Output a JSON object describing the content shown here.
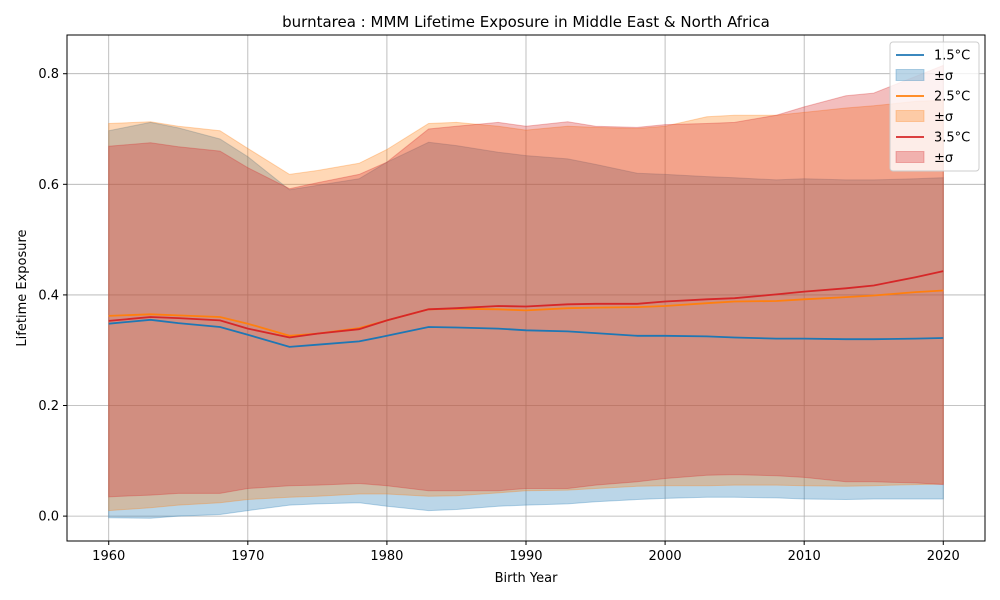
{
  "chart_data": {
    "type": "area",
    "title": "burntarea : MMM Lifetime Exposure in Middle East & North Africa",
    "xlabel": "Birth Year",
    "ylabel": "Lifetime Exposure",
    "xlim": [
      1957,
      2023
    ],
    "ylim": [
      -0.045,
      0.87
    ],
    "x_ticks": [
      "1960",
      "1970",
      "1980",
      "1990",
      "2000",
      "2010",
      "2020"
    ],
    "y_ticks": [
      "0.0",
      "0.2",
      "0.4",
      "0.6",
      "0.8"
    ],
    "grid": true,
    "legend_position": "top-right",
    "x": [
      1960,
      1963,
      1965,
      1968,
      1970,
      1973,
      1975,
      1978,
      1980,
      1983,
      1985,
      1988,
      1990,
      1993,
      1995,
      1998,
      2000,
      2003,
      2005,
      2008,
      2010,
      2013,
      2015,
      2018,
      2020
    ],
    "series": [
      {
        "name": "1.5°C",
        "band_label": "±σ",
        "color": "#1f77b4",
        "fill": "#9ec5e4",
        "mean": [
          0.348,
          0.355,
          0.349,
          0.342,
          0.328,
          0.306,
          0.31,
          0.316,
          0.326,
          0.342,
          0.341,
          0.339,
          0.336,
          0.334,
          0.331,
          0.326,
          0.326,
          0.325,
          0.323,
          0.321,
          0.321,
          0.32,
          0.32,
          0.321,
          0.322
        ],
        "upper": [
          0.697,
          0.712,
          0.702,
          0.682,
          0.65,
          0.59,
          0.598,
          0.61,
          0.64,
          0.676,
          0.67,
          0.658,
          0.652,
          0.646,
          0.636,
          0.62,
          0.618,
          0.614,
          0.612,
          0.608,
          0.61,
          0.608,
          0.608,
          0.61,
          0.612
        ],
        "lower": [
          -0.003,
          -0.004,
          0.0,
          0.003,
          0.01,
          0.02,
          0.022,
          0.024,
          0.018,
          0.01,
          0.012,
          0.018,
          0.02,
          0.022,
          0.026,
          0.03,
          0.032,
          0.034,
          0.034,
          0.033,
          0.031,
          0.03,
          0.031,
          0.031,
          0.031
        ]
      },
      {
        "name": "2.5°C",
        "band_label": "±σ",
        "color": "#ff7f0e",
        "fill": "#ffc896",
        "mean": [
          0.362,
          0.365,
          0.363,
          0.36,
          0.348,
          0.326,
          0.33,
          0.34,
          0.354,
          0.374,
          0.375,
          0.374,
          0.372,
          0.376,
          0.377,
          0.378,
          0.38,
          0.385,
          0.388,
          0.389,
          0.392,
          0.396,
          0.399,
          0.405,
          0.408
        ],
        "upper": [
          0.71,
          0.713,
          0.705,
          0.697,
          0.665,
          0.618,
          0.625,
          0.638,
          0.663,
          0.71,
          0.712,
          0.705,
          0.698,
          0.705,
          0.703,
          0.701,
          0.705,
          0.722,
          0.725,
          0.725,
          0.73,
          0.738,
          0.742,
          0.75,
          0.752
        ],
        "lower": [
          0.01,
          0.015,
          0.02,
          0.024,
          0.03,
          0.034,
          0.036,
          0.04,
          0.04,
          0.036,
          0.037,
          0.042,
          0.046,
          0.047,
          0.05,
          0.054,
          0.055,
          0.055,
          0.056,
          0.056,
          0.055,
          0.054,
          0.055,
          0.057,
          0.058
        ]
      },
      {
        "name": "3.5°C",
        "band_label": "±σ",
        "color": "#d62728",
        "fill": "#eba0a0",
        "mean": [
          0.353,
          0.36,
          0.358,
          0.354,
          0.339,
          0.323,
          0.33,
          0.338,
          0.354,
          0.374,
          0.376,
          0.38,
          0.379,
          0.383,
          0.384,
          0.384,
          0.388,
          0.392,
          0.394,
          0.401,
          0.406,
          0.412,
          0.417,
          0.432,
          0.443
        ],
        "upper": [
          0.669,
          0.675,
          0.668,
          0.66,
          0.63,
          0.592,
          0.603,
          0.618,
          0.64,
          0.7,
          0.705,
          0.712,
          0.705,
          0.713,
          0.705,
          0.703,
          0.708,
          0.71,
          0.712,
          0.725,
          0.74,
          0.76,
          0.765,
          0.795,
          0.815
        ],
        "lower": [
          0.035,
          0.038,
          0.041,
          0.041,
          0.05,
          0.055,
          0.056,
          0.059,
          0.055,
          0.046,
          0.046,
          0.046,
          0.05,
          0.05,
          0.056,
          0.062,
          0.068,
          0.074,
          0.075,
          0.073,
          0.07,
          0.062,
          0.062,
          0.06,
          0.057
        ]
      }
    ]
  }
}
